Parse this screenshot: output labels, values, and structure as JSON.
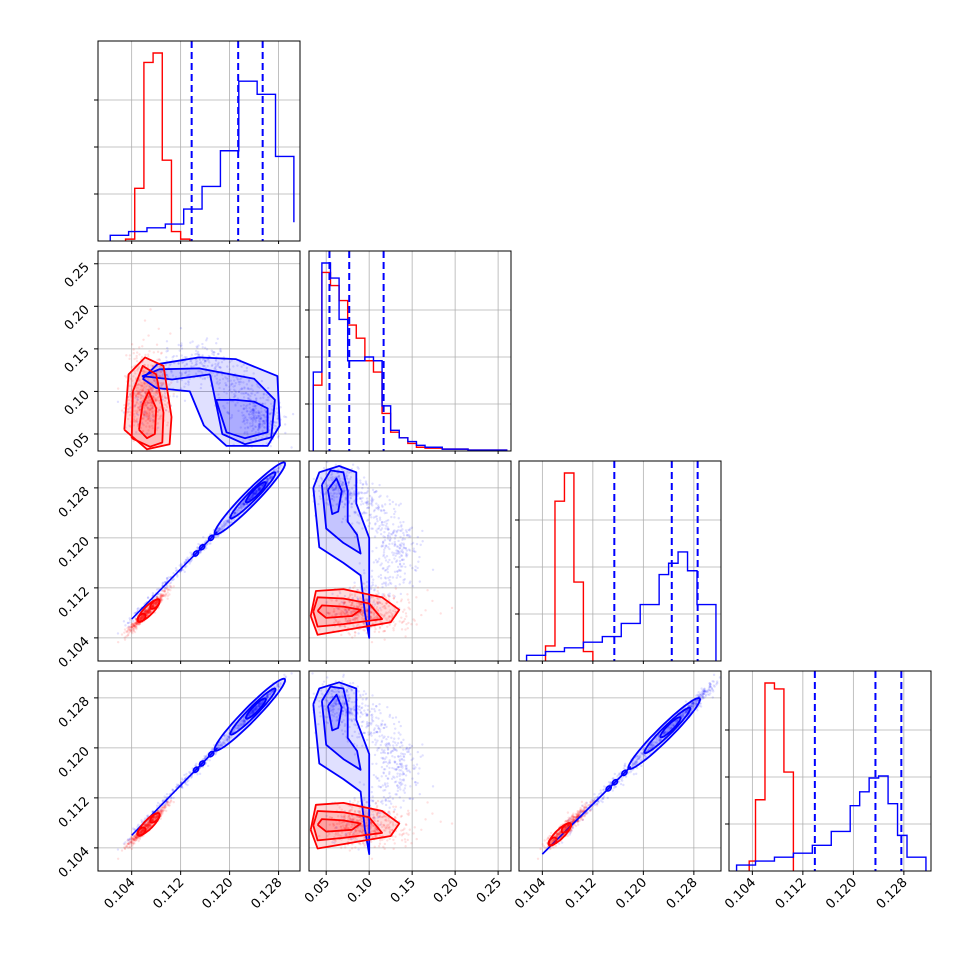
{
  "chart_data": {
    "type": "corner",
    "colors": {
      "series_a": "#0000ff",
      "series_b": "#ff0000",
      "grid": "#b0b0b0",
      "frame": "#000000"
    },
    "grid": true,
    "params": [
      {
        "range": [
          0.0985,
          0.1315
        ],
        "ticks": [
          0.104,
          0.112,
          0.12,
          0.128
        ],
        "tick_labels": [
          "0.104",
          "0.112",
          "0.120",
          "0.128"
        ]
      },
      {
        "range": [
          0.03,
          0.265
        ],
        "ticks": [
          0.05,
          0.1,
          0.15,
          0.2,
          0.25
        ],
        "tick_labels": [
          "0.05",
          "0.10",
          "0.15",
          "0.20",
          "0.25"
        ]
      },
      {
        "range": [
          0.1003,
          0.1323
        ],
        "ticks": [
          0.104,
          0.112,
          0.12,
          0.128
        ],
        "tick_labels": [
          "0.104",
          "0.112",
          "0.120",
          "0.128"
        ]
      },
      {
        "range": [
          0.1003,
          0.1323
        ],
        "ticks": [
          0.104,
          0.112,
          0.12,
          0.128
        ],
        "tick_labels": [
          "0.104",
          "0.112",
          "0.120",
          "0.128"
        ]
      }
    ],
    "quantiles_series_a": [
      [
        0.1138,
        0.1214,
        0.1254
      ],
      [
        0.0538,
        0.0768,
        0.1168
      ],
      [
        0.1154,
        0.1245,
        0.1286
      ],
      [
        0.1139,
        0.1235,
        0.1276
      ]
    ],
    "histograms": [
      {
        "a_edges": [
          0.1005,
          0.1035,
          0.1065,
          0.1095,
          0.1125,
          0.1155,
          0.1185,
          0.1215,
          0.1245,
          0.1275,
          0.1305
        ],
        "a_counts": [
          0.03,
          0.05,
          0.07,
          0.09,
          0.17,
          0.29,
          0.48,
          0.85,
          0.78,
          0.45,
          0.1
        ],
        "b_edges": [
          0.103,
          0.1045,
          0.106,
          0.1075,
          0.109,
          0.1105,
          0.112,
          0.1135
        ],
        "b_counts": [
          0.01,
          0.28,
          0.95,
          1.0,
          0.43,
          0.05,
          0.01
        ]
      },
      {
        "a_edges": [
          0.035,
          0.045,
          0.055,
          0.065,
          0.075,
          0.085,
          0.095,
          0.105,
          0.115,
          0.125,
          0.135,
          0.145,
          0.155,
          0.165,
          0.185,
          0.215,
          0.26
        ],
        "a_counts": [
          0.42,
          1.0,
          0.92,
          0.7,
          0.48,
          0.48,
          0.5,
          0.48,
          0.24,
          0.11,
          0.07,
          0.05,
          0.03,
          0.02,
          0.01,
          0.005
        ],
        "b_edges": [
          0.035,
          0.045,
          0.055,
          0.065,
          0.075,
          0.085,
          0.095,
          0.105,
          0.115,
          0.125,
          0.135,
          0.145,
          0.155,
          0.165,
          0.185,
          0.215,
          0.26
        ],
        "b_counts": [
          0.35,
          0.95,
          0.88,
          0.8,
          0.67,
          0.6,
          0.48,
          0.42,
          0.2,
          0.1,
          0.07,
          0.04,
          0.02,
          0.015,
          0.01,
          0.005
        ]
      },
      {
        "a_edges": [
          0.1015,
          0.1045,
          0.1075,
          0.1105,
          0.1135,
          0.1165,
          0.1195,
          0.1225,
          0.124,
          0.1255,
          0.127,
          0.1285,
          0.1315
        ],
        "a_counts": [
          0.03,
          0.05,
          0.07,
          0.1,
          0.13,
          0.2,
          0.3,
          0.46,
          0.52,
          0.58,
          0.48,
          0.3
        ],
        "b_edges": [
          0.1045,
          0.106,
          0.1075,
          0.109,
          0.1105,
          0.112
        ],
        "b_counts": [
          0.08,
          0.85,
          1.0,
          0.42,
          0.05
        ]
      },
      {
        "a_edges": [
          0.1015,
          0.1045,
          0.1075,
          0.1105,
          0.1135,
          0.1165,
          0.1195,
          0.121,
          0.1225,
          0.124,
          0.1255,
          0.127,
          0.1285,
          0.1315
        ],
        "a_counts": [
          0.03,
          0.05,
          0.07,
          0.09,
          0.13,
          0.2,
          0.33,
          0.4,
          0.47,
          0.48,
          0.34,
          0.18,
          0.07
        ],
        "b_edges": [
          0.1035,
          0.1045,
          0.106,
          0.1075,
          0.109,
          0.1105
        ],
        "b_counts": [
          0.05,
          0.36,
          0.95,
          0.92,
          0.5
        ]
      }
    ]
  }
}
